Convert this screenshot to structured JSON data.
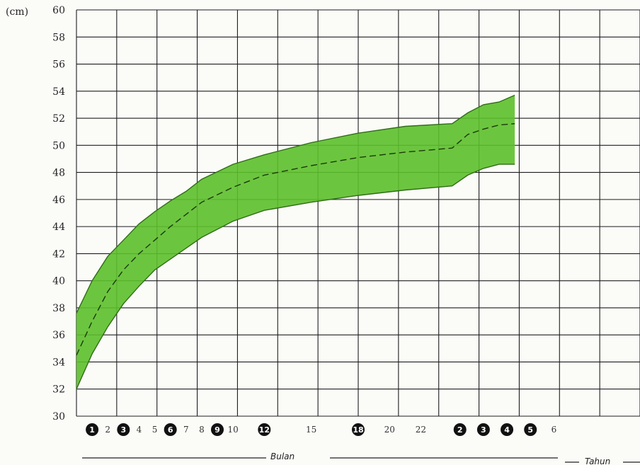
{
  "chart_data": {
    "type": "area",
    "unit_label": "(cm)",
    "ylim": [
      30,
      60
    ],
    "y_ticks": [
      30,
      32,
      34,
      36,
      38,
      40,
      42,
      44,
      46,
      48,
      50,
      52,
      54,
      56,
      58,
      60
    ],
    "x_domain": [
      0,
      36
    ],
    "grid": true,
    "band_color": "#5cbf2a",
    "band_edge_color": "#2f6d16",
    "median_color": "#1a3a0c",
    "month_labels": [
      {
        "x": 1,
        "text": "1",
        "badge": true
      },
      {
        "x": 2,
        "text": "2",
        "badge": false
      },
      {
        "x": 3,
        "text": "3",
        "badge": true
      },
      {
        "x": 4,
        "text": "4",
        "badge": false
      },
      {
        "x": 5,
        "text": "5",
        "badge": false
      },
      {
        "x": 6,
        "text": "6",
        "badge": true
      },
      {
        "x": 7,
        "text": "7",
        "badge": false
      },
      {
        "x": 8,
        "text": "8",
        "badge": false
      },
      {
        "x": 9,
        "text": "9",
        "badge": true
      },
      {
        "x": 10,
        "text": "10",
        "badge": false
      },
      {
        "x": 12,
        "text": "12",
        "badge": true
      },
      {
        "x": 15,
        "text": "15",
        "badge": false
      },
      {
        "x": 18,
        "text": "18",
        "badge": true
      },
      {
        "x": 20,
        "text": "20",
        "badge": false
      },
      {
        "x": 22,
        "text": "22",
        "badge": false
      }
    ],
    "year_labels": [
      {
        "x": 24.5,
        "text": "2",
        "badge": true
      },
      {
        "x": 26,
        "text": "3",
        "badge": true
      },
      {
        "x": 27.5,
        "text": "4",
        "badge": true
      },
      {
        "x": 29,
        "text": "5",
        "badge": true
      },
      {
        "x": 30.5,
        "text": "6",
        "badge": false
      }
    ],
    "xlabel_months": "Bulan",
    "xlabel_years": "Tahun",
    "series": [
      {
        "role": "upper",
        "points": [
          [
            0,
            37.6
          ],
          [
            1,
            40.0
          ],
          [
            2,
            41.8
          ],
          [
            3,
            43.0
          ],
          [
            4,
            44.2
          ],
          [
            5,
            45.1
          ],
          [
            6,
            45.9
          ],
          [
            7,
            46.6
          ],
          [
            8,
            47.5
          ],
          [
            10,
            48.6
          ],
          [
            12,
            49.3
          ],
          [
            15,
            50.2
          ],
          [
            18,
            50.9
          ],
          [
            21,
            51.4
          ],
          [
            24,
            51.6
          ],
          [
            25,
            52.4
          ],
          [
            26,
            53.0
          ],
          [
            27,
            53.2
          ],
          [
            28,
            53.7
          ]
        ]
      },
      {
        "role": "median",
        "points": [
          [
            0,
            34.5
          ],
          [
            1,
            37.0
          ],
          [
            2,
            39.2
          ],
          [
            3,
            40.8
          ],
          [
            4,
            42.0
          ],
          [
            5,
            43.0
          ],
          [
            6,
            44.0
          ],
          [
            7,
            44.9
          ],
          [
            8,
            45.8
          ],
          [
            10,
            46.9
          ],
          [
            12,
            47.8
          ],
          [
            15,
            48.5
          ],
          [
            18,
            49.1
          ],
          [
            21,
            49.5
          ],
          [
            24,
            49.8
          ],
          [
            25,
            50.8
          ],
          [
            26,
            51.2
          ],
          [
            27,
            51.5
          ],
          [
            28,
            51.6
          ]
        ]
      },
      {
        "role": "lower",
        "points": [
          [
            0,
            32.0
          ],
          [
            1,
            34.6
          ],
          [
            2,
            36.6
          ],
          [
            3,
            38.3
          ],
          [
            4,
            39.6
          ],
          [
            5,
            40.8
          ],
          [
            6,
            41.6
          ],
          [
            7,
            42.4
          ],
          [
            8,
            43.2
          ],
          [
            10,
            44.4
          ],
          [
            12,
            45.2
          ],
          [
            15,
            45.8
          ],
          [
            18,
            46.3
          ],
          [
            21,
            46.7
          ],
          [
            24,
            47.0
          ],
          [
            25,
            47.8
          ],
          [
            26,
            48.3
          ],
          [
            27,
            48.6
          ],
          [
            28,
            48.6
          ]
        ]
      }
    ]
  }
}
